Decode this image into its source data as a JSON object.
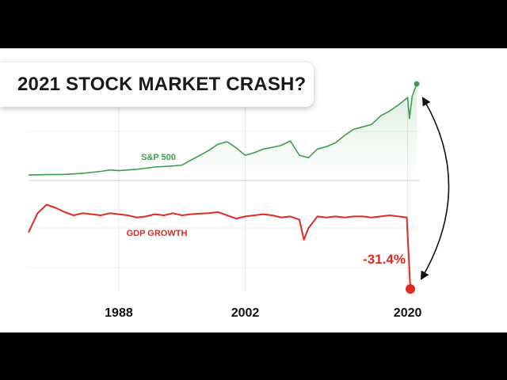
{
  "title": "2021 STOCK MARKET CRASH?",
  "chart_data": [
    {
      "type": "area",
      "x_type": "year",
      "xlim": [
        1978,
        2021
      ],
      "x_ticks": [
        "1988",
        "2002",
        "2020"
      ],
      "series": [
        {
          "name": "S&P 500",
          "color": "#3c9d4e",
          "x": [
            1978,
            1980,
            1982,
            1984,
            1986,
            1987,
            1988,
            1990,
            1992,
            1994,
            1995,
            1996,
            1997,
            1998,
            1999,
            2000,
            2001,
            2002,
            2003,
            2004,
            2005,
            2006,
            2007,
            2008,
            2009,
            2010,
            2011,
            2012,
            2013,
            2014,
            2015,
            2016,
            2017,
            2018,
            2019,
            2020,
            2020.2,
            2020.5,
            2021
          ],
          "values": [
            95,
            110,
            120,
            165,
            240,
            300,
            270,
            330,
            420,
            460,
            500,
            700,
            900,
            1100,
            1350,
            1450,
            1200,
            900,
            1000,
            1150,
            1220,
            1300,
            1480,
            900,
            800,
            1150,
            1250,
            1400,
            1700,
            1950,
            2050,
            2150,
            2500,
            2700,
            2950,
            3250,
            2400,
            3300,
            3800
          ]
        }
      ]
    },
    {
      "type": "line",
      "x_type": "year",
      "xlim": [
        1978,
        2021
      ],
      "series": [
        {
          "name": "GDP GROWTH",
          "color": "#e12a22",
          "x": [
            1978,
            1979,
            1980,
            1981,
            1982,
            1983,
            1984,
            1985,
            1986,
            1987,
            1988,
            1989,
            1990,
            1991,
            1992,
            1993,
            1994,
            1995,
            1996,
            1997,
            1998,
            1999,
            2000,
            2001,
            2002,
            2003,
            2004,
            2005,
            2006,
            2007,
            2008,
            2008.5,
            2009,
            2010,
            2011,
            2012,
            2013,
            2014,
            2015,
            2016,
            2017,
            2018,
            2019,
            2019.9,
            2020.3
          ],
          "values": [
            -5.0,
            4.0,
            8.0,
            6.5,
            4.5,
            3.0,
            4.0,
            3.5,
            3.0,
            4.0,
            3.5,
            3.0,
            2.0,
            2.5,
            3.5,
            3.0,
            4.0,
            3.0,
            3.5,
            3.8,
            4.0,
            4.5,
            3.0,
            1.5,
            2.5,
            3.0,
            3.5,
            3.0,
            2.0,
            2.5,
            1.0,
            -8.4,
            -3.0,
            2.5,
            2.0,
            2.5,
            2.0,
            2.5,
            2.5,
            2.0,
            2.5,
            3.0,
            2.5,
            2.0,
            -31.4
          ]
        }
      ],
      "annotation": "-31.4%"
    }
  ]
}
